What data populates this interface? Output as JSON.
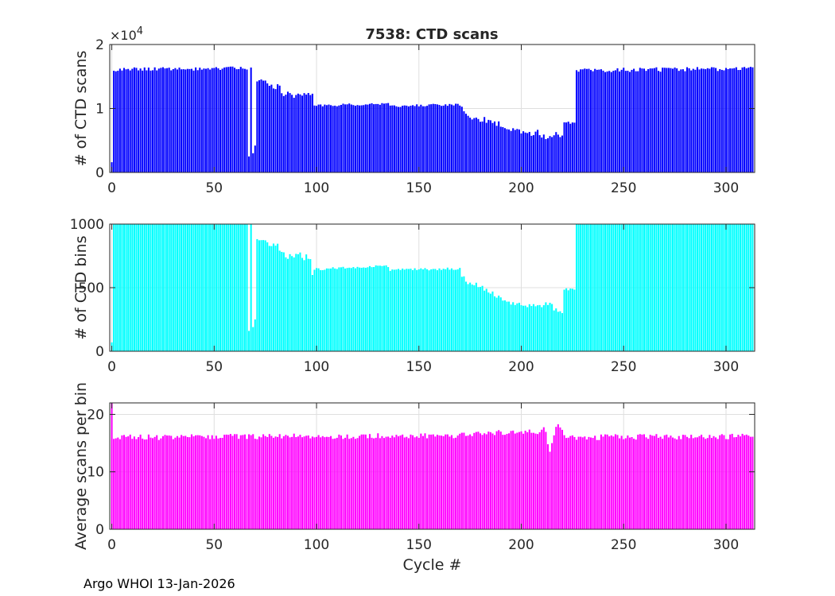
{
  "title": "7538: CTD scans",
  "footer": "Argo WHOI 13-Jan-2026",
  "chart_data": [
    {
      "type": "bar",
      "name": "scans",
      "ylabel": "# of CTD scans",
      "xlabel": "",
      "color": "#0000ff",
      "xlim": [
        -1,
        314
      ],
      "ylim": [
        0,
        20000
      ],
      "xticks": [
        0,
        50,
        100,
        150,
        200,
        250,
        300
      ],
      "yticks": [
        0,
        10000,
        20000
      ],
      "ytick_labels": [
        "0",
        "1",
        "2"
      ],
      "exponent_label": "×10^4",
      "grid": true,
      "segments": [
        {
          "x0": 0,
          "x1": 0,
          "v0": 1600,
          "v1": 1600
        },
        {
          "x0": 1,
          "x1": 66,
          "v0": 16100,
          "v1": 16300,
          "jitter": 300
        },
        {
          "x0": 67,
          "x1": 67,
          "v0": 2500,
          "v1": 2500
        },
        {
          "x0": 68,
          "x1": 68,
          "v0": 16400,
          "v1": 16400
        },
        {
          "x0": 69,
          "x1": 69,
          "v0": 3000,
          "v1": 3000
        },
        {
          "x0": 70,
          "x1": 70,
          "v0": 4200,
          "v1": 4200
        },
        {
          "x0": 71,
          "x1": 82,
          "v0": 14600,
          "v1": 13200,
          "jitter": 500
        },
        {
          "x0": 83,
          "x1": 98,
          "v0": 12200,
          "v1": 12000,
          "jitter": 500
        },
        {
          "x0": 99,
          "x1": 135,
          "v0": 10400,
          "v1": 10800,
          "jitter": 200
        },
        {
          "x0": 136,
          "x1": 170,
          "v0": 10400,
          "v1": 10600,
          "jitter": 200
        },
        {
          "x0": 171,
          "x1": 176,
          "v0": 10200,
          "v1": 8300,
          "jitter": 300
        },
        {
          "x0": 177,
          "x1": 190,
          "v0": 8700,
          "v1": 7400,
          "jitter": 500
        },
        {
          "x0": 191,
          "x1": 205,
          "v0": 7000,
          "v1": 6000,
          "jitter": 300
        },
        {
          "x0": 206,
          "x1": 216,
          "v0": 6500,
          "v1": 5500,
          "jitter": 700
        },
        {
          "x0": 217,
          "x1": 220,
          "v0": 6600,
          "v1": 5200,
          "jitter": 600
        },
        {
          "x0": 221,
          "x1": 226,
          "v0": 7800,
          "v1": 7700,
          "jitter": 200
        },
        {
          "x0": 227,
          "x1": 313,
          "v0": 16000,
          "v1": 16200,
          "jitter": 350
        }
      ]
    },
    {
      "type": "bar",
      "name": "bins",
      "ylabel": "# of CTD bins",
      "xlabel": "",
      "color": "#00ffff",
      "xlim": [
        -1,
        314
      ],
      "ylim": [
        0,
        1000
      ],
      "xticks": [
        0,
        50,
        100,
        150,
        200,
        250,
        300
      ],
      "yticks": [
        0,
        500,
        1000
      ],
      "ytick_labels": [
        "0",
        "500",
        "1000"
      ],
      "grid": true,
      "segments": [
        {
          "x0": 0,
          "x1": 0,
          "v0": 70,
          "v1": 70
        },
        {
          "x0": 1,
          "x1": 66,
          "v0": 1000,
          "v1": 1000
        },
        {
          "x0": 67,
          "x1": 67,
          "v0": 160,
          "v1": 160
        },
        {
          "x0": 68,
          "x1": 68,
          "v0": 1000,
          "v1": 1000
        },
        {
          "x0": 69,
          "x1": 69,
          "v0": 190,
          "v1": 190
        },
        {
          "x0": 70,
          "x1": 70,
          "v0": 250,
          "v1": 250
        },
        {
          "x0": 71,
          "x1": 82,
          "v0": 900,
          "v1": 820,
          "jitter": 30
        },
        {
          "x0": 83,
          "x1": 97,
          "v0": 760,
          "v1": 740,
          "jitter": 30
        },
        {
          "x0": 98,
          "x1": 98,
          "v0": 600,
          "v1": 600
        },
        {
          "x0": 99,
          "x1": 135,
          "v0": 645,
          "v1": 670,
          "jitter": 10
        },
        {
          "x0": 136,
          "x1": 170,
          "v0": 640,
          "v1": 650,
          "jitter": 10
        },
        {
          "x0": 171,
          "x1": 176,
          "v0": 600,
          "v1": 510,
          "jitter": 20
        },
        {
          "x0": 177,
          "x1": 190,
          "v0": 530,
          "v1": 420,
          "jitter": 20
        },
        {
          "x0": 191,
          "x1": 205,
          "v0": 390,
          "v1": 355,
          "jitter": 15
        },
        {
          "x0": 206,
          "x1": 216,
          "v0": 380,
          "v1": 350,
          "jitter": 30
        },
        {
          "x0": 217,
          "x1": 220,
          "v0": 340,
          "v1": 290,
          "jitter": 20
        },
        {
          "x0": 221,
          "x1": 226,
          "v0": 490,
          "v1": 480,
          "jitter": 10
        },
        {
          "x0": 227,
          "x1": 313,
          "v0": 1000,
          "v1": 1000
        }
      ]
    },
    {
      "type": "bar",
      "name": "average",
      "ylabel": "Average scans per bin",
      "xlabel": "Cycle #",
      "color": "#ff00ff",
      "xlim": [
        -1,
        314
      ],
      "ylim": [
        0,
        22
      ],
      "xticks": [
        0,
        50,
        100,
        150,
        200,
        250,
        300
      ],
      "yticks": [
        0,
        10,
        20
      ],
      "ytick_labels": [
        "0",
        "10",
        "20"
      ],
      "grid": true,
      "segments": [
        {
          "x0": 0,
          "x1": 0,
          "v0": 22,
          "v1": 22
        },
        {
          "x0": 1,
          "x1": 170,
          "v0": 16.0,
          "v1": 16.3,
          "jitter": 0.5
        },
        {
          "x0": 171,
          "x1": 205,
          "v0": 16.5,
          "v1": 17.2,
          "jitter": 0.5
        },
        {
          "x0": 206,
          "x1": 212,
          "v0": 17.0,
          "v1": 17.5,
          "jitter": 0.6
        },
        {
          "x0": 213,
          "x1": 213,
          "v0": 14.8,
          "v1": 14.8
        },
        {
          "x0": 214,
          "x1": 214,
          "v0": 13.5,
          "v1": 13.5
        },
        {
          "x0": 215,
          "x1": 215,
          "v0": 15.0,
          "v1": 15.0
        },
        {
          "x0": 216,
          "x1": 220,
          "v0": 17.0,
          "v1": 18.0,
          "jitter": 0.8
        },
        {
          "x0": 221,
          "x1": 226,
          "v0": 16.0,
          "v1": 16.3,
          "jitter": 0.4
        },
        {
          "x0": 227,
          "x1": 313,
          "v0": 16.0,
          "v1": 16.2,
          "jitter": 0.5
        }
      ]
    }
  ]
}
